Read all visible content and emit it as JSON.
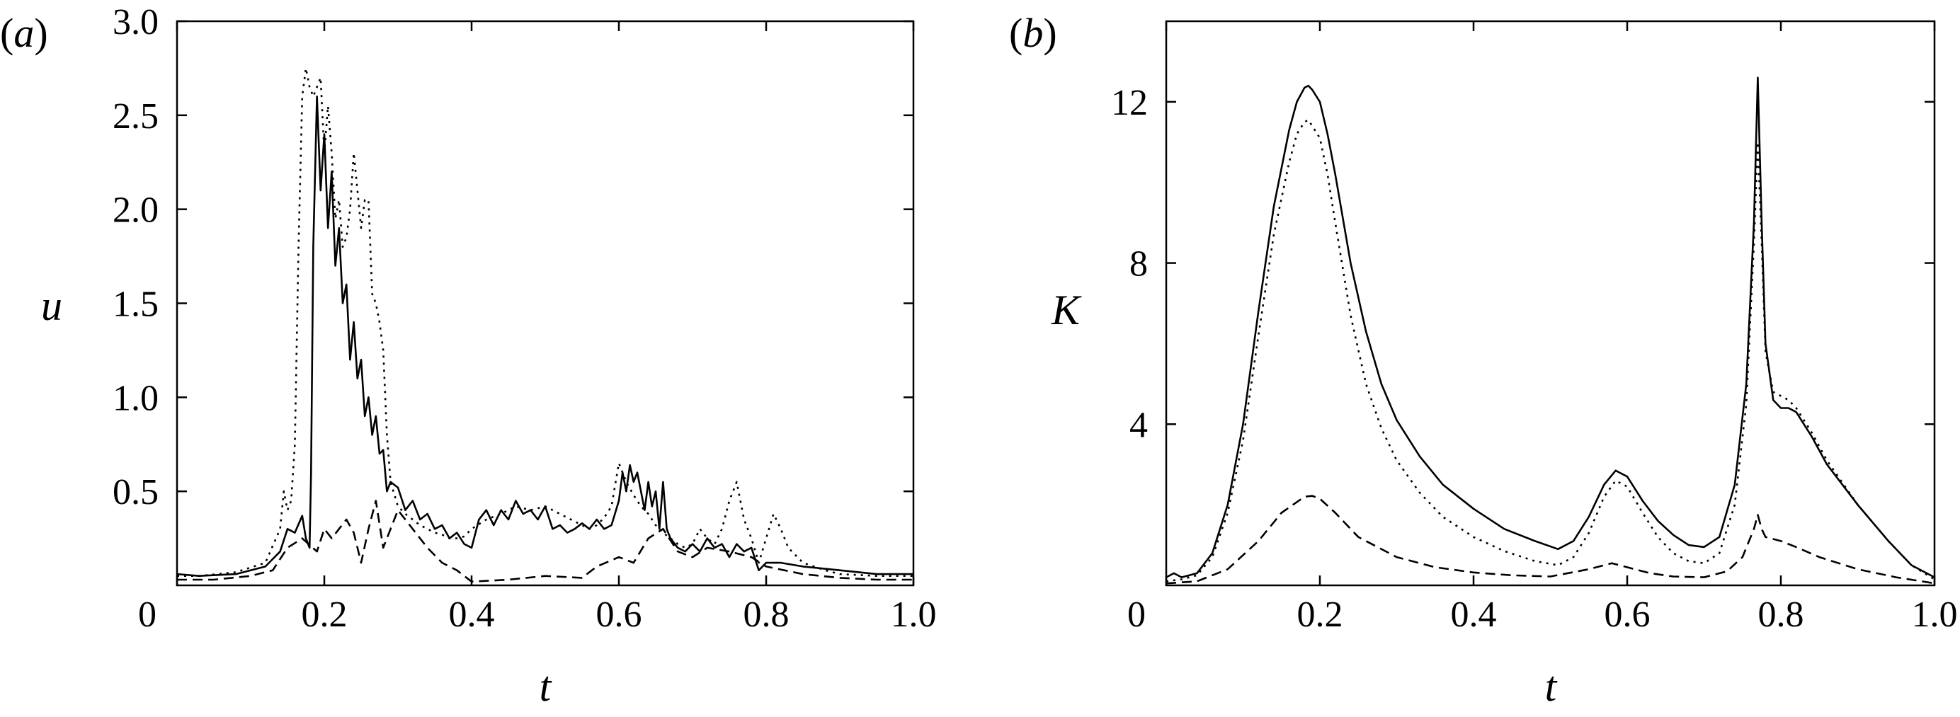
{
  "chart_data": [
    {
      "type": "line",
      "panel_label": "a",
      "xlabel": "t",
      "ylabel": "u",
      "xlim": [
        0,
        1.0
      ],
      "ylim": [
        0,
        3.0
      ],
      "x_ticks": [
        0,
        0.2,
        0.4,
        0.6,
        0.8,
        1.0
      ],
      "x_tick_labels": [
        "0",
        "0.2",
        "0.4",
        "0.6",
        "0.8",
        "1.0"
      ],
      "y_ticks": [
        0.5,
        1.0,
        1.5,
        2.0,
        2.5,
        3.0
      ],
      "y_tick_labels": [
        "0.5",
        "1.0",
        "1.5",
        "2.0",
        "2.5",
        "3.0"
      ],
      "grid": false,
      "legend": "none",
      "series": [
        {
          "style": "solid",
          "x": [
            0.0,
            0.03,
            0.08,
            0.12,
            0.14,
            0.15,
            0.16,
            0.17,
            0.175,
            0.18,
            0.182,
            0.185,
            0.19,
            0.195,
            0.2,
            0.205,
            0.21,
            0.215,
            0.22,
            0.225,
            0.23,
            0.235,
            0.24,
            0.245,
            0.25,
            0.255,
            0.26,
            0.265,
            0.27,
            0.275,
            0.28,
            0.285,
            0.29,
            0.3,
            0.31,
            0.32,
            0.33,
            0.34,
            0.35,
            0.36,
            0.37,
            0.38,
            0.39,
            0.4,
            0.41,
            0.42,
            0.43,
            0.44,
            0.45,
            0.46,
            0.47,
            0.48,
            0.49,
            0.5,
            0.51,
            0.52,
            0.53,
            0.54,
            0.55,
            0.56,
            0.57,
            0.58,
            0.59,
            0.6,
            0.605,
            0.61,
            0.615,
            0.62,
            0.625,
            0.63,
            0.635,
            0.64,
            0.645,
            0.65,
            0.655,
            0.66,
            0.665,
            0.67,
            0.68,
            0.69,
            0.7,
            0.71,
            0.72,
            0.73,
            0.74,
            0.75,
            0.76,
            0.77,
            0.78,
            0.79,
            0.8,
            0.82,
            0.85,
            0.9,
            0.95,
            1.0
          ],
          "y": [
            0.06,
            0.05,
            0.06,
            0.1,
            0.18,
            0.3,
            0.28,
            0.37,
            0.25,
            0.2,
            0.6,
            1.8,
            2.6,
            2.1,
            2.4,
            1.9,
            2.2,
            1.7,
            1.9,
            1.5,
            1.6,
            1.2,
            1.4,
            1.1,
            1.2,
            0.9,
            1.0,
            0.8,
            0.9,
            0.7,
            0.72,
            0.5,
            0.55,
            0.52,
            0.4,
            0.45,
            0.35,
            0.38,
            0.3,
            0.32,
            0.25,
            0.28,
            0.22,
            0.2,
            0.35,
            0.4,
            0.32,
            0.4,
            0.35,
            0.45,
            0.38,
            0.4,
            0.35,
            0.42,
            0.3,
            0.32,
            0.28,
            0.3,
            0.33,
            0.3,
            0.35,
            0.3,
            0.32,
            0.45,
            0.6,
            0.5,
            0.64,
            0.55,
            0.6,
            0.5,
            0.4,
            0.55,
            0.42,
            0.5,
            0.3,
            0.55,
            0.3,
            0.25,
            0.2,
            0.18,
            0.22,
            0.18,
            0.25,
            0.2,
            0.22,
            0.15,
            0.22,
            0.18,
            0.2,
            0.08,
            0.12,
            0.12,
            0.1,
            0.08,
            0.06,
            0.06
          ]
        },
        {
          "style": "dotted",
          "x": [
            0.0,
            0.03,
            0.08,
            0.12,
            0.14,
            0.145,
            0.15,
            0.155,
            0.16,
            0.165,
            0.17,
            0.175,
            0.18,
            0.185,
            0.19,
            0.195,
            0.2,
            0.205,
            0.21,
            0.215,
            0.22,
            0.225,
            0.23,
            0.235,
            0.24,
            0.245,
            0.25,
            0.255,
            0.26,
            0.265,
            0.27,
            0.275,
            0.28,
            0.285,
            0.29,
            0.3,
            0.31,
            0.32,
            0.33,
            0.34,
            0.35,
            0.36,
            0.37,
            0.38,
            0.39,
            0.4,
            0.42,
            0.44,
            0.46,
            0.48,
            0.5,
            0.52,
            0.54,
            0.56,
            0.57,
            0.58,
            0.59,
            0.6,
            0.61,
            0.62,
            0.63,
            0.64,
            0.65,
            0.66,
            0.67,
            0.68,
            0.69,
            0.7,
            0.71,
            0.72,
            0.73,
            0.74,
            0.75,
            0.76,
            0.77,
            0.78,
            0.79,
            0.8,
            0.81,
            0.82,
            0.83,
            0.85,
            0.88,
            0.9,
            0.95,
            1.0
          ],
          "y": [
            0.05,
            0.05,
            0.07,
            0.12,
            0.3,
            0.5,
            0.4,
            0.45,
            0.75,
            1.8,
            2.6,
            2.75,
            2.65,
            2.6,
            2.65,
            2.7,
            2.3,
            2.55,
            2.3,
            1.95,
            2.05,
            1.8,
            1.85,
            2.0,
            2.3,
            2.1,
            1.9,
            2.05,
            2.05,
            1.55,
            1.5,
            1.4,
            1.25,
            0.8,
            0.55,
            0.42,
            0.38,
            0.35,
            0.32,
            0.3,
            0.28,
            0.27,
            0.25,
            0.25,
            0.26,
            0.3,
            0.35,
            0.38,
            0.42,
            0.4,
            0.42,
            0.38,
            0.34,
            0.3,
            0.32,
            0.36,
            0.42,
            0.65,
            0.55,
            0.48,
            0.42,
            0.38,
            0.32,
            0.28,
            0.25,
            0.22,
            0.2,
            0.22,
            0.3,
            0.25,
            0.22,
            0.3,
            0.45,
            0.55,
            0.35,
            0.25,
            0.12,
            0.25,
            0.38,
            0.3,
            0.2,
            0.12,
            0.08,
            0.06,
            0.05,
            0.05
          ]
        },
        {
          "style": "dashed",
          "x": [
            0.0,
            0.05,
            0.1,
            0.13,
            0.15,
            0.17,
            0.19,
            0.2,
            0.21,
            0.22,
            0.23,
            0.24,
            0.25,
            0.26,
            0.27,
            0.28,
            0.29,
            0.3,
            0.32,
            0.34,
            0.36,
            0.38,
            0.4,
            0.45,
            0.5,
            0.55,
            0.57,
            0.6,
            0.62,
            0.64,
            0.66,
            0.68,
            0.7,
            0.72,
            0.75,
            0.78,
            0.8,
            0.85,
            0.9,
            0.95,
            1.0
          ],
          "y": [
            0.03,
            0.03,
            0.05,
            0.08,
            0.2,
            0.25,
            0.18,
            0.3,
            0.25,
            0.3,
            0.35,
            0.28,
            0.12,
            0.3,
            0.45,
            0.2,
            0.3,
            0.4,
            0.3,
            0.2,
            0.12,
            0.08,
            0.02,
            0.03,
            0.05,
            0.04,
            0.1,
            0.15,
            0.12,
            0.25,
            0.3,
            0.18,
            0.15,
            0.2,
            0.18,
            0.15,
            0.1,
            0.06,
            0.04,
            0.03,
            0.03
          ]
        }
      ]
    },
    {
      "type": "line",
      "panel_label": "b",
      "xlabel": "t",
      "ylabel": "K",
      "xlim": [
        0,
        1.0
      ],
      "ylim": [
        0,
        14
      ],
      "x_ticks": [
        0,
        0.2,
        0.4,
        0.6,
        0.8,
        1.0
      ],
      "x_tick_labels": [
        "0",
        "0.2",
        "0.4",
        "0.6",
        "0.8",
        "1.0"
      ],
      "y_ticks": [
        4,
        8,
        12
      ],
      "y_tick_labels": [
        "4",
        "8",
        "12"
      ],
      "grid": false,
      "legend": "none",
      "series": [
        {
          "style": "solid",
          "x": [
            0.0,
            0.01,
            0.02,
            0.04,
            0.06,
            0.08,
            0.1,
            0.12,
            0.14,
            0.16,
            0.17,
            0.18,
            0.185,
            0.19,
            0.2,
            0.21,
            0.22,
            0.24,
            0.26,
            0.28,
            0.3,
            0.33,
            0.36,
            0.4,
            0.44,
            0.48,
            0.51,
            0.53,
            0.55,
            0.57,
            0.585,
            0.6,
            0.62,
            0.64,
            0.66,
            0.68,
            0.7,
            0.72,
            0.74,
            0.755,
            0.765,
            0.77,
            0.775,
            0.78,
            0.79,
            0.8,
            0.81,
            0.82,
            0.84,
            0.86,
            0.9,
            0.94,
            0.97,
            1.0
          ],
          "y": [
            0.2,
            0.3,
            0.2,
            0.3,
            0.8,
            2.0,
            4.0,
            6.8,
            9.4,
            11.3,
            12.0,
            12.35,
            12.4,
            12.3,
            12.0,
            11.2,
            10.2,
            8.0,
            6.3,
            5.0,
            4.1,
            3.2,
            2.5,
            1.9,
            1.4,
            1.1,
            0.9,
            1.1,
            1.7,
            2.5,
            2.85,
            2.7,
            2.1,
            1.6,
            1.25,
            1.0,
            0.95,
            1.2,
            2.5,
            5.0,
            9.0,
            12.6,
            9.0,
            6.0,
            4.6,
            4.4,
            4.4,
            4.3,
            3.7,
            3.0,
            2.0,
            1.1,
            0.5,
            0.2
          ]
        },
        {
          "style": "dotted",
          "x": [
            0.0,
            0.02,
            0.04,
            0.06,
            0.08,
            0.1,
            0.12,
            0.14,
            0.16,
            0.17,
            0.18,
            0.185,
            0.19,
            0.2,
            0.21,
            0.22,
            0.24,
            0.26,
            0.28,
            0.3,
            0.33,
            0.36,
            0.4,
            0.44,
            0.48,
            0.51,
            0.53,
            0.55,
            0.57,
            0.585,
            0.6,
            0.62,
            0.64,
            0.66,
            0.68,
            0.7,
            0.72,
            0.74,
            0.755,
            0.765,
            0.77,
            0.775,
            0.78,
            0.79,
            0.8,
            0.81,
            0.82,
            0.84,
            0.86,
            0.9,
            0.94,
            0.97,
            1.0
          ],
          "y": [
            0.1,
            0.15,
            0.25,
            0.7,
            1.8,
            3.6,
            6.2,
            8.7,
            10.5,
            11.2,
            11.5,
            11.55,
            11.4,
            11.1,
            10.2,
            9.0,
            6.7,
            5.0,
            3.9,
            3.1,
            2.3,
            1.7,
            1.2,
            0.85,
            0.6,
            0.5,
            0.7,
            1.3,
            2.2,
            2.6,
            2.45,
            1.8,
            1.2,
            0.8,
            0.6,
            0.55,
            0.8,
            2.0,
            4.5,
            8.5,
            11.0,
            8.5,
            5.8,
            4.8,
            4.7,
            4.6,
            4.4,
            3.8,
            3.1,
            2.0,
            1.1,
            0.5,
            0.15
          ]
        },
        {
          "style": "dashed",
          "x": [
            0.0,
            0.04,
            0.08,
            0.12,
            0.15,
            0.18,
            0.19,
            0.2,
            0.22,
            0.25,
            0.3,
            0.35,
            0.4,
            0.45,
            0.5,
            0.55,
            0.58,
            0.6,
            0.63,
            0.66,
            0.7,
            0.73,
            0.75,
            0.765,
            0.77,
            0.775,
            0.78,
            0.8,
            0.82,
            0.85,
            0.9,
            0.95,
            1.0
          ],
          "y": [
            0.05,
            0.1,
            0.4,
            1.1,
            1.8,
            2.2,
            2.22,
            2.15,
            1.8,
            1.2,
            0.7,
            0.45,
            0.32,
            0.25,
            0.22,
            0.4,
            0.55,
            0.45,
            0.3,
            0.22,
            0.2,
            0.35,
            0.7,
            1.4,
            1.75,
            1.4,
            1.2,
            1.1,
            0.95,
            0.7,
            0.4,
            0.2,
            0.05
          ]
        }
      ]
    }
  ]
}
